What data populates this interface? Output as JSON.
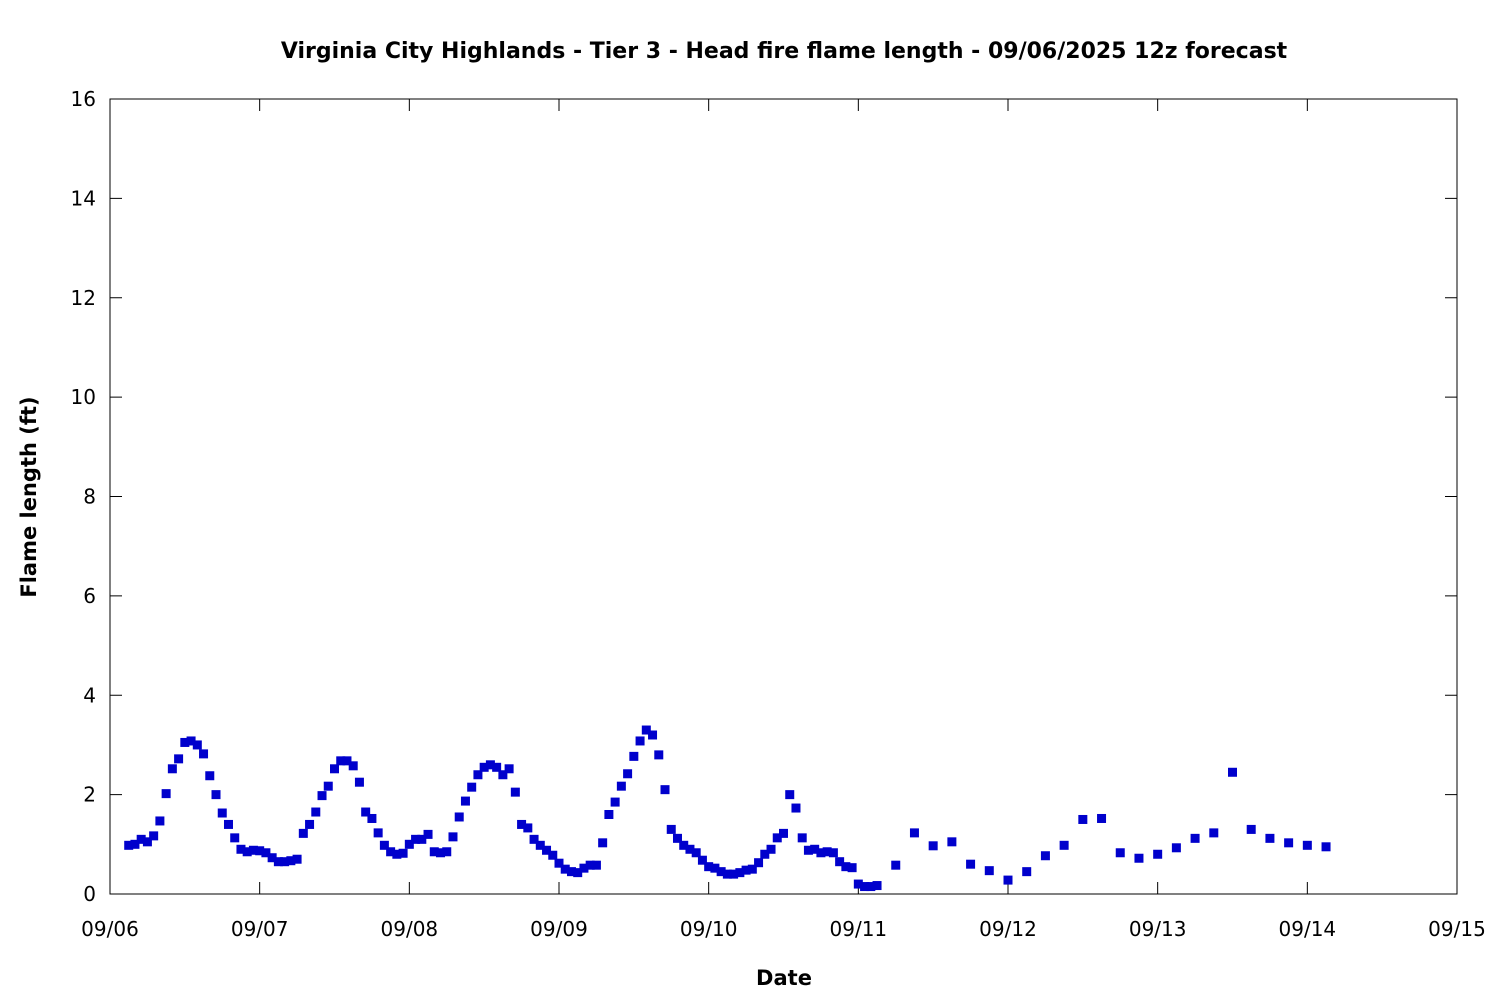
{
  "chart_data": {
    "type": "scatter",
    "title": "Virginia City Highlands - Tier 3 - Head fire flame length - 09/06/2025 12z forecast",
    "xlabel": "Date",
    "ylabel": "Flame length (ft)",
    "x_ticks": [
      "09/06",
      "09/07",
      "09/08",
      "09/09",
      "09/10",
      "09/11",
      "09/12",
      "09/13",
      "09/14",
      "09/15"
    ],
    "y_ticks": [
      "0",
      "2",
      "4",
      "6",
      "8",
      "10",
      "12",
      "14",
      "16"
    ],
    "xlim": [
      "2025-09-06 00:00",
      "2025-09-15 00:00"
    ],
    "ylim": [
      0,
      16
    ],
    "grid": false,
    "legend": "none",
    "marker_color": "#0000cc",
    "series": [
      {
        "points": [
          [
            "2025-09-06 03:00",
            0.98
          ],
          [
            "2025-09-06 04:00",
            1.0
          ],
          [
            "2025-09-06 05:00",
            1.1
          ],
          [
            "2025-09-06 06:00",
            1.05
          ],
          [
            "2025-09-06 07:00",
            1.17
          ],
          [
            "2025-09-06 08:00",
            1.47
          ],
          [
            "2025-09-06 09:00",
            2.02
          ],
          [
            "2025-09-06 10:00",
            2.52
          ],
          [
            "2025-09-06 11:00",
            2.72
          ],
          [
            "2025-09-06 12:00",
            3.05
          ],
          [
            "2025-09-06 13:00",
            3.08
          ],
          [
            "2025-09-06 14:00",
            3.0
          ],
          [
            "2025-09-06 15:00",
            2.82
          ],
          [
            "2025-09-06 16:00",
            2.38
          ],
          [
            "2025-09-06 17:00",
            2.0
          ],
          [
            "2025-09-06 18:00",
            1.63
          ],
          [
            "2025-09-06 19:00",
            1.4
          ],
          [
            "2025-09-06 20:00",
            1.13
          ],
          [
            "2025-09-06 21:00",
            0.9
          ],
          [
            "2025-09-06 22:00",
            0.85
          ],
          [
            "2025-09-06 23:00",
            0.88
          ],
          [
            "2025-09-07 00:00",
            0.87
          ],
          [
            "2025-09-07 01:00",
            0.83
          ],
          [
            "2025-09-07 02:00",
            0.73
          ],
          [
            "2025-09-07 03:00",
            0.65
          ],
          [
            "2025-09-07 04:00",
            0.65
          ],
          [
            "2025-09-07 05:00",
            0.67
          ],
          [
            "2025-09-07 06:00",
            0.7
          ],
          [
            "2025-09-07 07:00",
            1.22
          ],
          [
            "2025-09-07 08:00",
            1.4
          ],
          [
            "2025-09-07 09:00",
            1.65
          ],
          [
            "2025-09-07 10:00",
            1.98
          ],
          [
            "2025-09-07 11:00",
            2.17
          ],
          [
            "2025-09-07 12:00",
            2.52
          ],
          [
            "2025-09-07 13:00",
            2.68
          ],
          [
            "2025-09-07 14:00",
            2.68
          ],
          [
            "2025-09-07 15:00",
            2.58
          ],
          [
            "2025-09-07 16:00",
            2.25
          ],
          [
            "2025-09-07 17:00",
            1.65
          ],
          [
            "2025-09-07 18:00",
            1.52
          ],
          [
            "2025-09-07 19:00",
            1.23
          ],
          [
            "2025-09-07 20:00",
            0.98
          ],
          [
            "2025-09-07 21:00",
            0.85
          ],
          [
            "2025-09-07 22:00",
            0.8
          ],
          [
            "2025-09-07 23:00",
            0.82
          ],
          [
            "2025-09-08 00:00",
            1.0
          ],
          [
            "2025-09-08 01:00",
            1.1
          ],
          [
            "2025-09-08 02:00",
            1.1
          ],
          [
            "2025-09-08 03:00",
            1.2
          ],
          [
            "2025-09-08 04:00",
            0.85
          ],
          [
            "2025-09-08 05:00",
            0.83
          ],
          [
            "2025-09-08 06:00",
            0.85
          ],
          [
            "2025-09-08 07:00",
            1.15
          ],
          [
            "2025-09-08 08:00",
            1.55
          ],
          [
            "2025-09-08 09:00",
            1.87
          ],
          [
            "2025-09-08 10:00",
            2.15
          ],
          [
            "2025-09-08 11:00",
            2.4
          ],
          [
            "2025-09-08 12:00",
            2.55
          ],
          [
            "2025-09-08 13:00",
            2.6
          ],
          [
            "2025-09-08 14:00",
            2.55
          ],
          [
            "2025-09-08 15:00",
            2.4
          ],
          [
            "2025-09-08 16:00",
            2.52
          ],
          [
            "2025-09-08 17:00",
            2.05
          ],
          [
            "2025-09-08 18:00",
            1.4
          ],
          [
            "2025-09-08 19:00",
            1.33
          ],
          [
            "2025-09-08 20:00",
            1.1
          ],
          [
            "2025-09-08 21:00",
            0.98
          ],
          [
            "2025-09-08 22:00",
            0.88
          ],
          [
            "2025-09-08 23:00",
            0.78
          ],
          [
            "2025-09-09 00:00",
            0.62
          ],
          [
            "2025-09-09 01:00",
            0.5
          ],
          [
            "2025-09-09 02:00",
            0.45
          ],
          [
            "2025-09-09 03:00",
            0.43
          ],
          [
            "2025-09-09 04:00",
            0.52
          ],
          [
            "2025-09-09 05:00",
            0.58
          ],
          [
            "2025-09-09 06:00",
            0.58
          ],
          [
            "2025-09-09 07:00",
            1.03
          ],
          [
            "2025-09-09 08:00",
            1.6
          ],
          [
            "2025-09-09 09:00",
            1.85
          ],
          [
            "2025-09-09 10:00",
            2.17
          ],
          [
            "2025-09-09 11:00",
            2.42
          ],
          [
            "2025-09-09 12:00",
            2.77
          ],
          [
            "2025-09-09 13:00",
            3.08
          ],
          [
            "2025-09-09 14:00",
            3.3
          ],
          [
            "2025-09-09 15:00",
            3.2
          ],
          [
            "2025-09-09 16:00",
            2.8
          ],
          [
            "2025-09-09 17:00",
            2.1
          ],
          [
            "2025-09-09 18:00",
            1.3
          ],
          [
            "2025-09-09 19:00",
            1.12
          ],
          [
            "2025-09-09 20:00",
            0.98
          ],
          [
            "2025-09-09 21:00",
            0.9
          ],
          [
            "2025-09-09 22:00",
            0.83
          ],
          [
            "2025-09-09 23:00",
            0.68
          ],
          [
            "2025-09-10 00:00",
            0.55
          ],
          [
            "2025-09-10 01:00",
            0.52
          ],
          [
            "2025-09-10 02:00",
            0.45
          ],
          [
            "2025-09-10 03:00",
            0.4
          ],
          [
            "2025-09-10 04:00",
            0.4
          ],
          [
            "2025-09-10 05:00",
            0.43
          ],
          [
            "2025-09-10 06:00",
            0.48
          ],
          [
            "2025-09-10 07:00",
            0.5
          ],
          [
            "2025-09-10 08:00",
            0.63
          ],
          [
            "2025-09-10 09:00",
            0.8
          ],
          [
            "2025-09-10 10:00",
            0.9
          ],
          [
            "2025-09-10 11:00",
            1.13
          ],
          [
            "2025-09-10 12:00",
            1.22
          ],
          [
            "2025-09-10 13:00",
            2.0
          ],
          [
            "2025-09-10 14:00",
            1.73
          ],
          [
            "2025-09-10 15:00",
            1.13
          ],
          [
            "2025-09-10 16:00",
            0.88
          ],
          [
            "2025-09-10 17:00",
            0.9
          ],
          [
            "2025-09-10 18:00",
            0.83
          ],
          [
            "2025-09-10 19:00",
            0.85
          ],
          [
            "2025-09-10 20:00",
            0.83
          ],
          [
            "2025-09-10 21:00",
            0.65
          ],
          [
            "2025-09-10 22:00",
            0.55
          ],
          [
            "2025-09-10 23:00",
            0.53
          ],
          [
            "2025-09-11 00:00",
            0.2
          ],
          [
            "2025-09-11 01:00",
            0.15
          ],
          [
            "2025-09-11 02:00",
            0.15
          ],
          [
            "2025-09-11 03:00",
            0.17
          ],
          [
            "2025-09-11 06:00",
            0.58
          ],
          [
            "2025-09-11 09:00",
            1.23
          ],
          [
            "2025-09-11 12:00",
            0.97
          ],
          [
            "2025-09-11 15:00",
            1.05
          ],
          [
            "2025-09-11 18:00",
            0.6
          ],
          [
            "2025-09-11 21:00",
            0.47
          ],
          [
            "2025-09-12 00:00",
            0.28
          ],
          [
            "2025-09-12 03:00",
            0.45
          ],
          [
            "2025-09-12 06:00",
            0.77
          ],
          [
            "2025-09-12 09:00",
            0.98
          ],
          [
            "2025-09-12 12:00",
            1.5
          ],
          [
            "2025-09-12 15:00",
            1.52
          ],
          [
            "2025-09-12 18:00",
            0.83
          ],
          [
            "2025-09-12 21:00",
            0.72
          ],
          [
            "2025-09-13 00:00",
            0.8
          ],
          [
            "2025-09-13 03:00",
            0.93
          ],
          [
            "2025-09-13 06:00",
            1.12
          ],
          [
            "2025-09-13 09:00",
            1.23
          ],
          [
            "2025-09-13 12:00",
            2.45
          ],
          [
            "2025-09-13 15:00",
            1.3
          ],
          [
            "2025-09-13 18:00",
            1.12
          ],
          [
            "2025-09-13 21:00",
            1.03
          ],
          [
            "2025-09-14 00:00",
            0.98
          ],
          [
            "2025-09-14 03:00",
            0.95
          ]
        ]
      }
    ]
  }
}
